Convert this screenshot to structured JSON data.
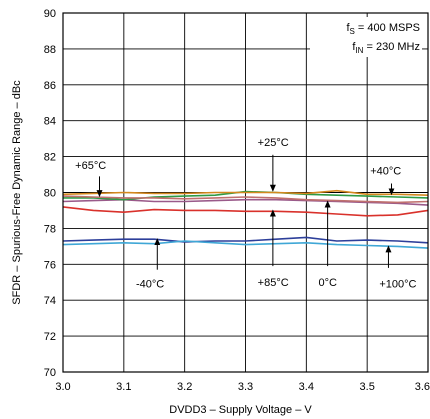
{
  "chart_data": {
    "type": "line",
    "xlabel": "DVDD3 – Supply Voltage – V",
    "ylabel": "SFDR – Spurious-Free Dynamic Range – dBc",
    "xlim": [
      3.0,
      3.6
    ],
    "ylim": [
      70,
      90
    ],
    "x_ticks": [
      "3.0",
      "3.1",
      "3.2",
      "3.3",
      "3.4",
      "3.5",
      "3.6"
    ],
    "y_ticks": [
      "70",
      "72",
      "74",
      "76",
      "78",
      "80",
      "82",
      "84",
      "86",
      "88",
      "90"
    ],
    "grid": true,
    "conditions": {
      "line1_prefix": "f",
      "line1_sub": "S",
      "line1_suffix": " = 400 MSPS",
      "line2_prefix": "f",
      "line2_sub": "IN",
      "line2_suffix": " = 230 MHz"
    },
    "series": [
      {
        "name": "-40°C",
        "color": "#2d3f9a",
        "x": [
          3.0,
          3.05,
          3.1,
          3.15,
          3.2,
          3.25,
          3.3,
          3.35,
          3.4,
          3.45,
          3.5,
          3.55,
          3.6
        ],
        "values": [
          77.3,
          77.35,
          77.4,
          77.4,
          77.25,
          77.3,
          77.3,
          77.4,
          77.5,
          77.3,
          77.35,
          77.3,
          77.2
        ]
      },
      {
        "name": "+100°C",
        "color": "#3fa7d6",
        "x": [
          3.0,
          3.05,
          3.1,
          3.15,
          3.2,
          3.25,
          3.3,
          3.35,
          3.4,
          3.45,
          3.5,
          3.55,
          3.6
        ],
        "values": [
          77.1,
          77.15,
          77.2,
          77.15,
          77.3,
          77.2,
          77.1,
          77.15,
          77.2,
          77.1,
          77.05,
          77.0,
          76.9
        ]
      },
      {
        "name": "+85°C",
        "color": "#d9312b",
        "x": [
          3.0,
          3.05,
          3.1,
          3.15,
          3.2,
          3.25,
          3.3,
          3.35,
          3.4,
          3.45,
          3.5,
          3.55,
          3.6
        ],
        "values": [
          79.2,
          79.0,
          78.9,
          79.05,
          79.0,
          79.0,
          78.95,
          78.95,
          78.9,
          78.8,
          78.7,
          78.75,
          79.0
        ]
      },
      {
        "name": "0°C",
        "color": "#9a5a8a",
        "x": [
          3.0,
          3.05,
          3.1,
          3.15,
          3.2,
          3.25,
          3.3,
          3.35,
          3.4,
          3.45,
          3.5,
          3.55,
          3.6
        ],
        "values": [
          79.5,
          79.55,
          79.6,
          79.5,
          79.5,
          79.55,
          79.6,
          79.6,
          79.55,
          79.5,
          79.45,
          79.4,
          79.3
        ]
      },
      {
        "name": "+25°C",
        "color": "#2e9a45",
        "x": [
          3.0,
          3.05,
          3.1,
          3.15,
          3.2,
          3.25,
          3.3,
          3.35,
          3.4,
          3.45,
          3.5,
          3.55,
          3.6
        ],
        "values": [
          79.7,
          79.7,
          79.6,
          79.75,
          79.8,
          79.85,
          80.05,
          80.0,
          79.9,
          79.85,
          79.8,
          79.75,
          79.7
        ]
      },
      {
        "name": "+40°C",
        "color": "#d4881e",
        "x": [
          3.0,
          3.05,
          3.1,
          3.15,
          3.2,
          3.25,
          3.3,
          3.35,
          3.4,
          3.45,
          3.5,
          3.55,
          3.6
        ],
        "values": [
          79.9,
          79.95,
          80.0,
          79.95,
          79.95,
          80.0,
          80.0,
          80.0,
          79.95,
          80.1,
          79.9,
          79.9,
          79.85
        ]
      },
      {
        "name": "+65°C",
        "color": "#c0706e",
        "x": [
          3.0,
          3.05,
          3.1,
          3.15,
          3.2,
          3.25,
          3.3,
          3.35,
          3.4,
          3.45,
          3.5,
          3.55,
          3.6
        ],
        "values": [
          79.8,
          79.75,
          79.7,
          79.7,
          79.65,
          79.7,
          79.75,
          79.7,
          79.6,
          79.55,
          79.5,
          79.45,
          79.5
        ]
      }
    ],
    "annotations": [
      {
        "label": "+65°C",
        "text_x": 3.02,
        "text_y": 81.3,
        "arrow_x": 3.06,
        "arrow_from_y": 80.9,
        "arrow_to_y": 79.8
      },
      {
        "label": "+25°C",
        "text_x": 3.32,
        "text_y": 82.6,
        "arrow_x": 3.345,
        "arrow_from_y": 82.1,
        "arrow_to_y": 80.1
      },
      {
        "label": "+40°C",
        "text_x": 3.505,
        "text_y": 81.0,
        "arrow_x": 3.54,
        "arrow_from_y": 80.5,
        "arrow_to_y": 79.9
      },
      {
        "label": "-40°C",
        "text_x": 3.12,
        "text_y": 74.7,
        "arrow_x": 3.155,
        "arrow_from_y": 75.7,
        "arrow_to_y": 77.4
      },
      {
        "label": "+85°C",
        "text_x": 3.32,
        "text_y": 74.8,
        "arrow_x": 3.345,
        "arrow_from_y": 75.9,
        "arrow_to_y": 79.0
      },
      {
        "label": "0°C",
        "text_x": 3.42,
        "text_y": 74.8,
        "arrow_x": 3.435,
        "arrow_from_y": 75.9,
        "arrow_to_y": 79.5
      },
      {
        "label": "+100°C",
        "text_x": 3.52,
        "text_y": 74.7,
        "arrow_x": 3.535,
        "arrow_from_y": 75.8,
        "arrow_to_y": 77.0
      }
    ]
  }
}
